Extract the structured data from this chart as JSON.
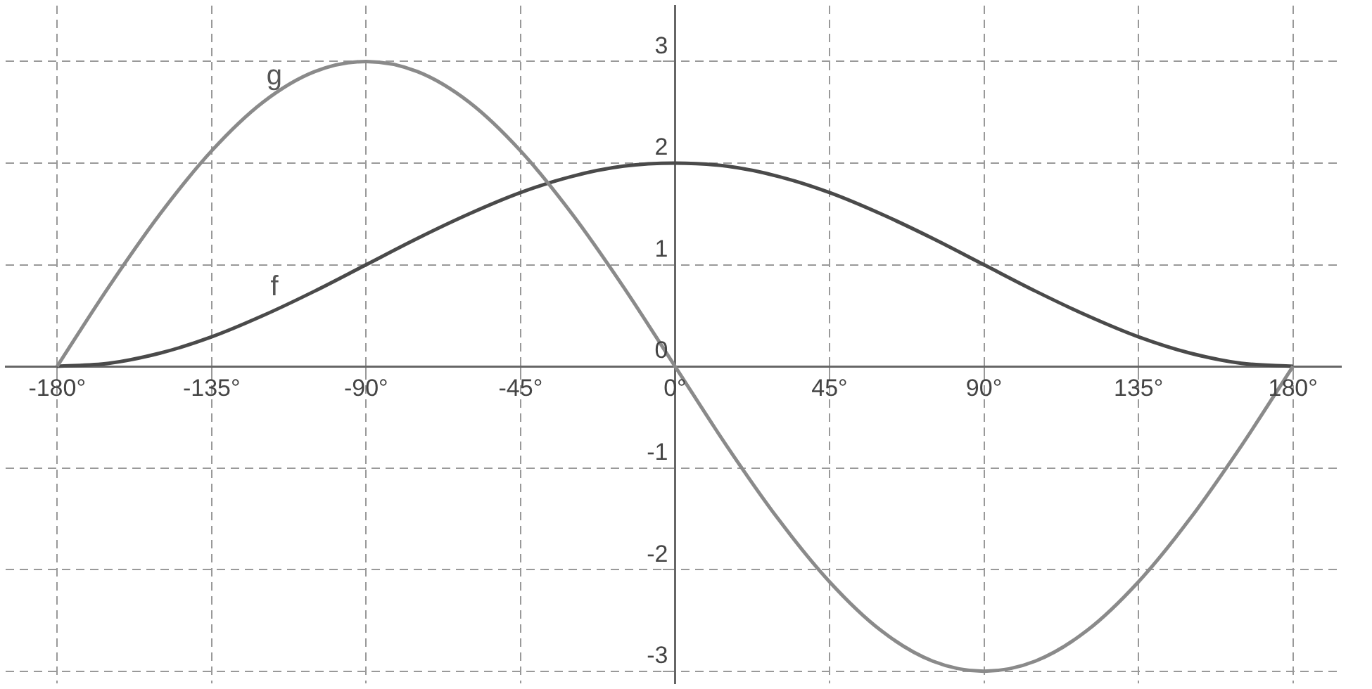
{
  "chart_data": {
    "type": "line",
    "x": [
      -180,
      -165,
      -150,
      -135,
      -120,
      -105,
      -90,
      -75,
      -60,
      -45,
      -30,
      -15,
      0,
      15,
      30,
      45,
      60,
      75,
      90,
      105,
      120,
      135,
      150,
      165,
      180
    ],
    "series": [
      {
        "name": "g",
        "color": "#8a8a8a",
        "values": [
          0,
          0.78,
          1.5,
          2.12,
          2.6,
          2.9,
          3,
          2.9,
          2.6,
          2.12,
          1.5,
          0.78,
          0,
          -0.78,
          -1.5,
          -2.12,
          -2.6,
          -2.9,
          -3,
          -2.9,
          -2.6,
          -2.12,
          -1.5,
          -0.78,
          0
        ]
      },
      {
        "name": "f",
        "color": "#4a4a4a",
        "values": [
          0,
          0.03,
          0.13,
          0.29,
          0.5,
          0.74,
          1,
          1.26,
          1.5,
          1.71,
          1.87,
          1.97,
          2,
          1.97,
          1.87,
          1.71,
          1.5,
          1.26,
          1,
          0.74,
          0.5,
          0.29,
          0.13,
          0.03,
          0
        ]
      }
    ],
    "xlim": [
      -195,
      194
    ],
    "ylim": [
      -3.12,
      3.55
    ],
    "xticks": [
      {
        "value": -180,
        "label": "-180°"
      },
      {
        "value": -135,
        "label": "-135°"
      },
      {
        "value": -90,
        "label": "-90°"
      },
      {
        "value": -45,
        "label": "-45°"
      },
      {
        "value": 0,
        "label": "0°"
      },
      {
        "value": 45,
        "label": "45°"
      },
      {
        "value": 90,
        "label": "90°"
      },
      {
        "value": 135,
        "label": "135°"
      },
      {
        "value": 180,
        "label": "180°"
      }
    ],
    "yticks": [
      -3,
      -2,
      -1,
      0,
      1,
      2,
      3
    ],
    "grid": true,
    "legend": false,
    "marker": "none",
    "line_style": "solid"
  }
}
